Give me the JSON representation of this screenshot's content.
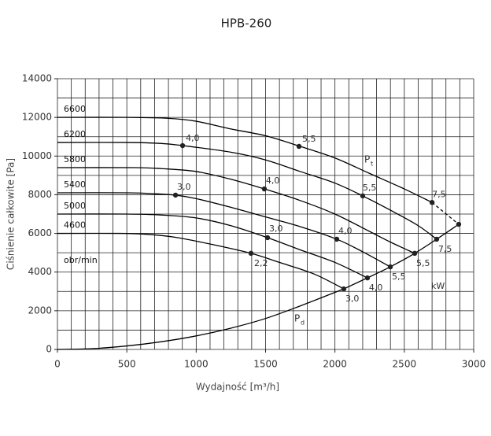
{
  "chart_data": {
    "type": "line",
    "title": "HPB-260",
    "x_label": "Wydajność [m³/h]",
    "y_label": "Ciśnienie całkowite [Pa]",
    "xlim": [
      0,
      3000
    ],
    "ylim": [
      0,
      14000
    ],
    "xticks": [
      0,
      500,
      1000,
      1500,
      2000,
      2500,
      3000
    ],
    "yticks": [
      0,
      2000,
      4000,
      6000,
      8000,
      10000,
      12000,
      14000
    ],
    "grid": true,
    "x_grid_step": 100,
    "y_grid_step": 1000,
    "rpm_unit": "obr/min",
    "power_unit": "kW",
    "total_pressure_label": {
      "main": "P",
      "sub": "t"
    },
    "dynamic_pressure_label": {
      "main": "P",
      "sub": "d"
    },
    "series": [
      {
        "name": "6600",
        "color": "#000000",
        "x": [
          0,
          500,
          800,
          1000,
          1250,
          1500,
          1750,
          2000,
          2250,
          2500,
          2700
        ],
        "values": [
          12000,
          12000,
          11950,
          11800,
          11400,
          11050,
          10500,
          9900,
          9100,
          8300,
          7600
        ]
      },
      {
        "name": "6200",
        "color": "#000000",
        "x": [
          0,
          500,
          750,
          902,
          1250,
          1500,
          1750,
          2000,
          2200,
          2400,
          2600,
          2733
        ],
        "values": [
          10700,
          10700,
          10650,
          10540,
          10200,
          9800,
          9200,
          8600,
          7940,
          7200,
          6400,
          5700
        ]
      },
      {
        "name": "5800",
        "color": "#000000",
        "x": [
          0,
          550,
          750,
          1000,
          1250,
          1491,
          1750,
          2000,
          2250,
          2400,
          2575
        ],
        "values": [
          9400,
          9400,
          9350,
          9200,
          8800,
          8300,
          7700,
          7000,
          6100,
          5550,
          4970
        ]
      },
      {
        "name": "5400",
        "color": "#000000",
        "x": [
          0,
          500,
          700,
          851,
          1000,
          1250,
          1500,
          1750,
          2013,
          2200,
          2399
        ],
        "values": [
          8100,
          8100,
          8050,
          7980,
          7800,
          7350,
          6850,
          6350,
          5700,
          5050,
          4270
        ]
      },
      {
        "name": "5000",
        "color": "#000000",
        "x": [
          0,
          500,
          750,
          1000,
          1250,
          1514,
          1750,
          2000,
          2234
        ],
        "values": [
          7000,
          7000,
          6950,
          6800,
          6400,
          5780,
          5150,
          4500,
          3700
        ]
      },
      {
        "name": "4600",
        "color": "#000000",
        "x": [
          0,
          450,
          650,
          850,
          1100,
          1395,
          1600,
          1850,
          2064
        ],
        "values": [
          6000,
          6000,
          5950,
          5800,
          5450,
          4970,
          4500,
          3900,
          3130
        ]
      }
    ],
    "boundary": {
      "color": "#000000",
      "x": [
        2064,
        2234,
        2399,
        2575,
        2733,
        2892
      ],
      "values": [
        3130,
        3700,
        4270,
        4970,
        5700,
        6470
      ]
    },
    "boundary_dashed": {
      "color": "#000000",
      "x": [
        2700,
        2892
      ],
      "values": [
        7600,
        6470
      ]
    },
    "dynamic_pressure": {
      "color": "#000000",
      "x": [
        0,
        250,
        500,
        750,
        1000,
        1250,
        1500,
        1750,
        2064
      ],
      "values": [
        0,
        40,
        180,
        400,
        700,
        1100,
        1600,
        2250,
        3130
      ]
    },
    "label_color": "#e8453c",
    "points": [
      {
        "x": 902,
        "y": 10540,
        "label": "4,0"
      },
      {
        "x": 1741,
        "y": 10500,
        "label": "5,5"
      },
      {
        "x": 2700,
        "y": 7600,
        "label": "7,5"
      },
      {
        "x": 2200,
        "y": 7940,
        "label": "5,5"
      },
      {
        "x": 2733,
        "y": 5700,
        "label": "7,5"
      },
      {
        "x": 1491,
        "y": 8300,
        "label": "4,0"
      },
      {
        "x": 2575,
        "y": 4970,
        "label": "5,5"
      },
      {
        "x": 851,
        "y": 7980,
        "label": "3,0"
      },
      {
        "x": 2013,
        "y": 5700,
        "label": "4,0"
      },
      {
        "x": 2399,
        "y": 4270,
        "label": "5,5"
      },
      {
        "x": 1514,
        "y": 5780,
        "label": "3,0"
      },
      {
        "x": 2234,
        "y": 3700,
        "label": "4,0"
      },
      {
        "x": 1395,
        "y": 4970,
        "label": "2,2"
      },
      {
        "x": 2064,
        "y": 3130,
        "label": "3,0"
      },
      {
        "x": 2892,
        "y": 6470
      }
    ]
  }
}
